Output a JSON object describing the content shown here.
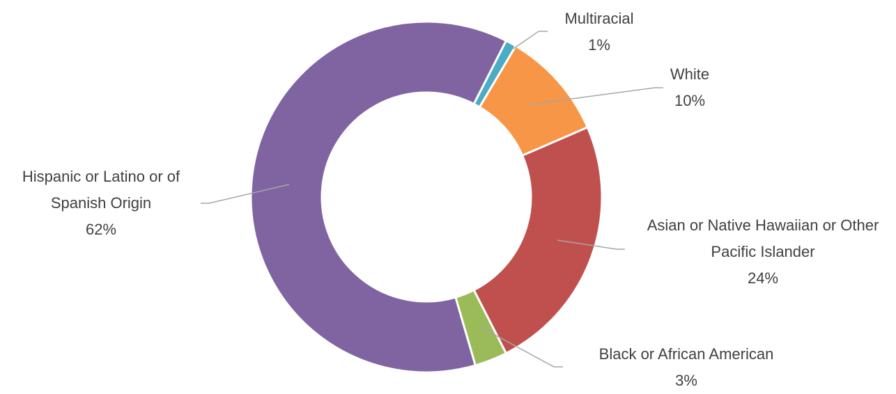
{
  "chart_data": {
    "type": "donut",
    "categories": [
      "Multiracial",
      "White",
      "Asian or Native Hawaiian or Other Pacific Islander",
      "Black or African American",
      "Hispanic or Latino or of Spanish Origin"
    ],
    "values": [
      1,
      10,
      24,
      3,
      62
    ],
    "value_labels": [
      "1%",
      "10%",
      "24%",
      "3%",
      "62%"
    ],
    "colors": [
      "#4bacc6",
      "#f79646",
      "#c0504d",
      "#9bbb59",
      "#8064a2"
    ]
  }
}
